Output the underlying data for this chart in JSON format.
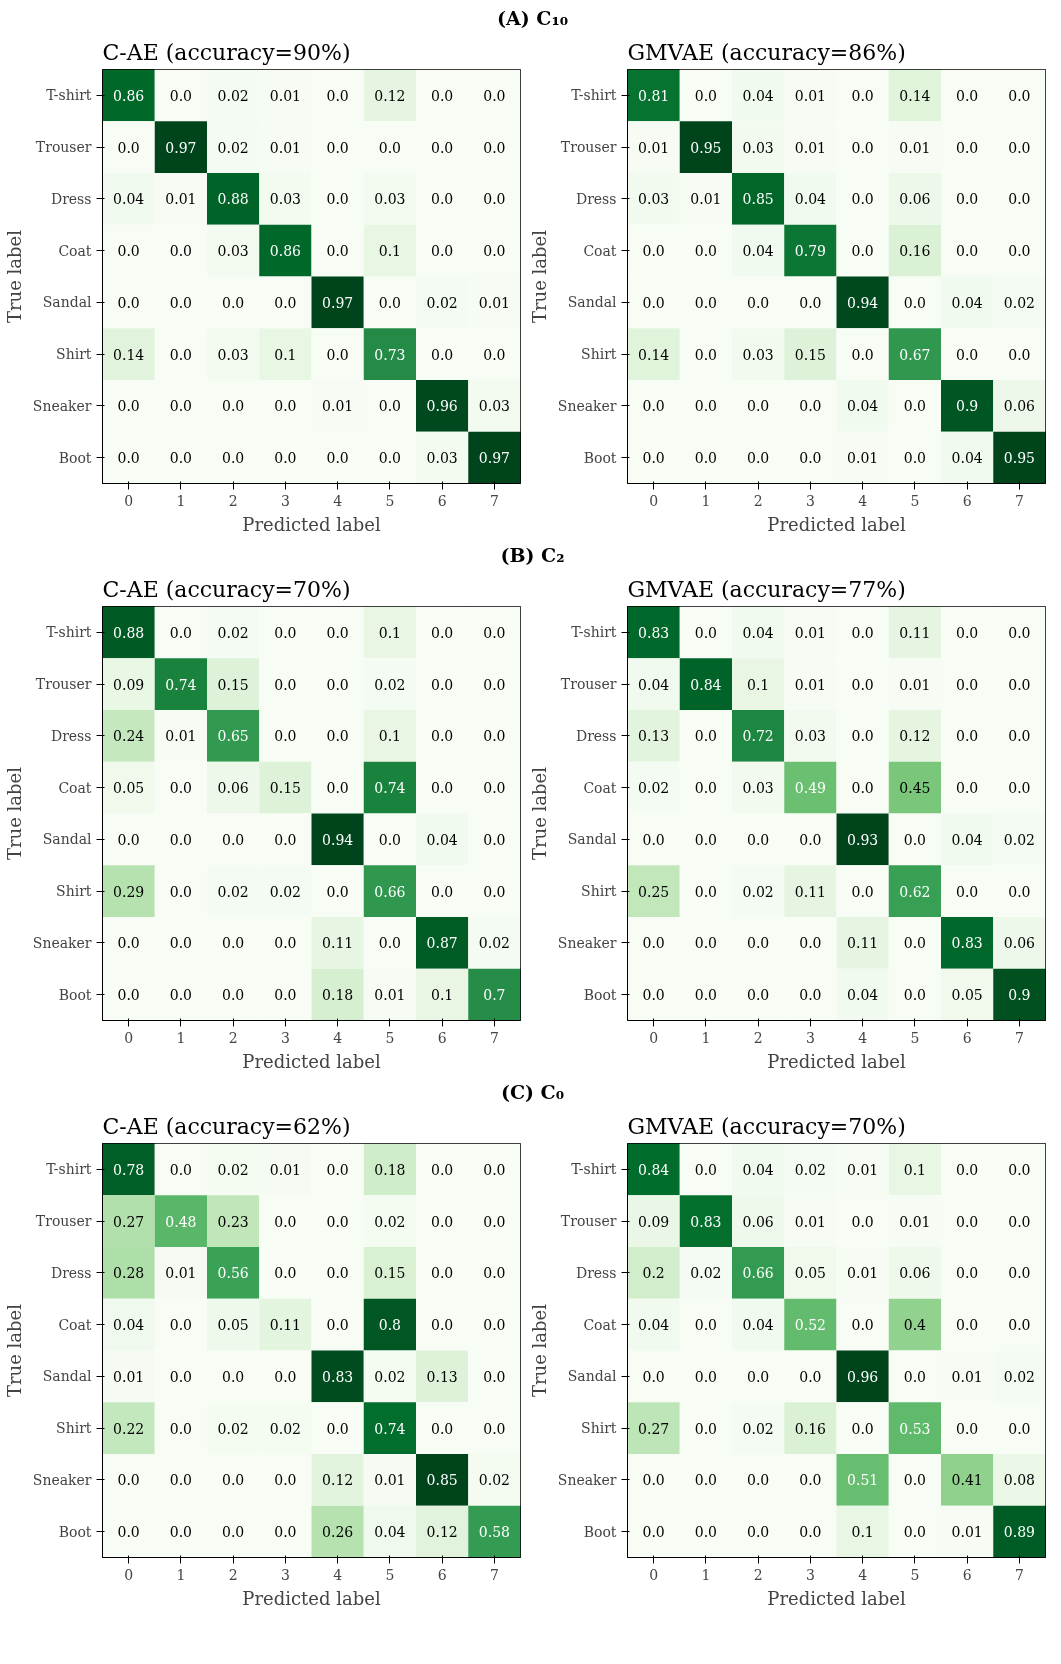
{
  "chart_data": [
    {
      "type": "heatmap",
      "subtitle": "(A) C₁₀",
      "title": "C-AE (accuracy=90%)",
      "xlabel": "Predicted label",
      "ylabel": "True label",
      "data_labels": true,
      "categories": [
        "0",
        "1",
        "2",
        "3",
        "4",
        "5",
        "6",
        "7"
      ],
      "y_categories": [
        "T-shirt",
        "Trouser",
        "Dress",
        "Coat",
        "Sandal",
        "Shirt",
        "Sneaker",
        "Boot"
      ],
      "cells": [
        [
          0.86,
          0.0,
          0.02,
          0.01,
          0.0,
          0.12,
          0.0,
          0.0
        ],
        [
          0.0,
          0.97,
          0.02,
          0.01,
          0.0,
          0.0,
          0.0,
          0.0
        ],
        [
          0.04,
          0.01,
          0.88,
          0.03,
          0.0,
          0.03,
          0.0,
          0.0
        ],
        [
          0.0,
          0.0,
          0.03,
          0.86,
          0.0,
          0.1,
          0.0,
          0.0
        ],
        [
          0.0,
          0.0,
          0.0,
          0.0,
          0.97,
          0.0,
          0.02,
          0.01
        ],
        [
          0.14,
          0.0,
          0.03,
          0.1,
          0.0,
          0.73,
          0.0,
          0.0
        ],
        [
          0.0,
          0.0,
          0.0,
          0.0,
          0.01,
          0.0,
          0.96,
          0.03
        ],
        [
          0.0,
          0.0,
          0.0,
          0.0,
          0.0,
          0.0,
          0.03,
          0.97
        ]
      ],
      "cell_labels": [
        [
          "0.86",
          "0.0",
          "0.02",
          "0.01",
          "0.0",
          "0.12",
          "0.0",
          "0.0"
        ],
        [
          "0.0",
          "0.97",
          "0.02",
          "0.01",
          "0.0",
          "0.0",
          "0.0",
          "0.0"
        ],
        [
          "0.04",
          "0.01",
          "0.88",
          "0.03",
          "0.0",
          "0.03",
          "0.0",
          "0.0"
        ],
        [
          "0.0",
          "0.0",
          "0.03",
          "0.86",
          "0.0",
          "0.1",
          "0.0",
          "0.0"
        ],
        [
          "0.0",
          "0.0",
          "0.0",
          "0.0",
          "0.97",
          "0.0",
          "0.02",
          "0.01"
        ],
        [
          "0.14",
          "0.0",
          "0.03",
          "0.1",
          "0.0",
          "0.73",
          "0.0",
          "0.0"
        ],
        [
          "0.0",
          "0.0",
          "0.0",
          "0.0",
          "0.01",
          "0.0",
          "0.96",
          "0.03"
        ],
        [
          "0.0",
          "0.0",
          "0.0",
          "0.0",
          "0.0",
          "0.0",
          "0.03",
          "0.97"
        ]
      ]
    },
    {
      "type": "heatmap",
      "title": "GMVAE (accuracy=86%)",
      "xlabel": "Predicted label",
      "ylabel": "True label",
      "data_labels": true,
      "categories": [
        "0",
        "1",
        "2",
        "3",
        "4",
        "5",
        "6",
        "7"
      ],
      "y_categories": [
        "T-shirt",
        "Trouser",
        "Dress",
        "Coat",
        "Sandal",
        "Shirt",
        "Sneaker",
        "Boot"
      ],
      "cells": [
        [
          0.81,
          0.0,
          0.04,
          0.01,
          0.0,
          0.14,
          0.0,
          0.0
        ],
        [
          0.01,
          0.95,
          0.03,
          0.01,
          0.0,
          0.01,
          0.0,
          0.0
        ],
        [
          0.03,
          0.01,
          0.85,
          0.04,
          0.0,
          0.06,
          0.0,
          0.0
        ],
        [
          0.0,
          0.0,
          0.04,
          0.79,
          0.0,
          0.16,
          0.0,
          0.0
        ],
        [
          0.0,
          0.0,
          0.0,
          0.0,
          0.94,
          0.0,
          0.04,
          0.02
        ],
        [
          0.14,
          0.0,
          0.03,
          0.15,
          0.0,
          0.67,
          0.0,
          0.0
        ],
        [
          0.0,
          0.0,
          0.0,
          0.0,
          0.04,
          0.0,
          0.9,
          0.06
        ],
        [
          0.0,
          0.0,
          0.0,
          0.0,
          0.01,
          0.0,
          0.04,
          0.95
        ]
      ],
      "cell_labels": [
        [
          "0.81",
          "0.0",
          "0.04",
          "0.01",
          "0.0",
          "0.14",
          "0.0",
          "0.0"
        ],
        [
          "0.01",
          "0.95",
          "0.03",
          "0.01",
          "0.0",
          "0.01",
          "0.0",
          "0.0"
        ],
        [
          "0.03",
          "0.01",
          "0.85",
          "0.04",
          "0.0",
          "0.06",
          "0.0",
          "0.0"
        ],
        [
          "0.0",
          "0.0",
          "0.04",
          "0.79",
          "0.0",
          "0.16",
          "0.0",
          "0.0"
        ],
        [
          "0.0",
          "0.0",
          "0.0",
          "0.0",
          "0.94",
          "0.0",
          "0.04",
          "0.02"
        ],
        [
          "0.14",
          "0.0",
          "0.03",
          "0.15",
          "0.0",
          "0.67",
          "0.0",
          "0.0"
        ],
        [
          "0.0",
          "0.0",
          "0.0",
          "0.0",
          "0.04",
          "0.0",
          "0.9",
          "0.06"
        ],
        [
          "0.0",
          "0.0",
          "0.0",
          "0.0",
          "0.01",
          "0.0",
          "0.04",
          "0.95"
        ]
      ]
    },
    {
      "type": "heatmap",
      "subtitle": "(B) C₂",
      "title": "C-AE (accuracy=70%)",
      "xlabel": "Predicted label",
      "ylabel": "True label",
      "data_labels": true,
      "categories": [
        "0",
        "1",
        "2",
        "3",
        "4",
        "5",
        "6",
        "7"
      ],
      "y_categories": [
        "T-shirt",
        "Trouser",
        "Dress",
        "Coat",
        "Sandal",
        "Shirt",
        "Sneaker",
        "Boot"
      ],
      "cells": [
        [
          0.88,
          0.0,
          0.02,
          0.0,
          0.0,
          0.1,
          0.0,
          0.0
        ],
        [
          0.09,
          0.74,
          0.15,
          0.0,
          0.0,
          0.02,
          0.0,
          0.0
        ],
        [
          0.24,
          0.01,
          0.65,
          0.0,
          0.0,
          0.1,
          0.0,
          0.0
        ],
        [
          0.05,
          0.0,
          0.06,
          0.15,
          0.0,
          0.74,
          0.0,
          0.0
        ],
        [
          0.0,
          0.0,
          0.0,
          0.0,
          0.94,
          0.0,
          0.04,
          0.0
        ],
        [
          0.29,
          0.0,
          0.02,
          0.02,
          0.0,
          0.66,
          0.0,
          0.0
        ],
        [
          0.0,
          0.0,
          0.0,
          0.0,
          0.11,
          0.0,
          0.87,
          0.02
        ],
        [
          0.0,
          0.0,
          0.0,
          0.0,
          0.18,
          0.01,
          0.1,
          0.7
        ]
      ],
      "cell_labels": [
        [
          "0.88",
          "0.0",
          "0.02",
          "0.0",
          "0.0",
          "0.1",
          "0.0",
          "0.0"
        ],
        [
          "0.09",
          "0.74",
          "0.15",
          "0.0",
          "0.0",
          "0.02",
          "0.0",
          "0.0"
        ],
        [
          "0.24",
          "0.01",
          "0.65",
          "0.0",
          "0.0",
          "0.1",
          "0.0",
          "0.0"
        ],
        [
          "0.05",
          "0.0",
          "0.06",
          "0.15",
          "0.0",
          "0.74",
          "0.0",
          "0.0"
        ],
        [
          "0.0",
          "0.0",
          "0.0",
          "0.0",
          "0.94",
          "0.0",
          "0.04",
          "0.0"
        ],
        [
          "0.29",
          "0.0",
          "0.02",
          "0.02",
          "0.0",
          "0.66",
          "0.0",
          "0.0"
        ],
        [
          "0.0",
          "0.0",
          "0.0",
          "0.0",
          "0.11",
          "0.0",
          "0.87",
          "0.02"
        ],
        [
          "0.0",
          "0.0",
          "0.0",
          "0.0",
          "0.18",
          "0.01",
          "0.1",
          "0.7"
        ]
      ]
    },
    {
      "type": "heatmap",
      "title": "GMVAE (accuracy=77%)",
      "xlabel": "Predicted label",
      "ylabel": "True label",
      "data_labels": true,
      "categories": [
        "0",
        "1",
        "2",
        "3",
        "4",
        "5",
        "6",
        "7"
      ],
      "y_categories": [
        "T-shirt",
        "Trouser",
        "Dress",
        "Coat",
        "Sandal",
        "Shirt",
        "Sneaker",
        "Boot"
      ],
      "cells": [
        [
          0.83,
          0.0,
          0.04,
          0.01,
          0.0,
          0.11,
          0.0,
          0.0
        ],
        [
          0.04,
          0.84,
          0.1,
          0.01,
          0.0,
          0.01,
          0.0,
          0.0
        ],
        [
          0.13,
          0.0,
          0.72,
          0.03,
          0.0,
          0.12,
          0.0,
          0.0
        ],
        [
          0.02,
          0.0,
          0.03,
          0.49,
          0.0,
          0.45,
          0.0,
          0.0
        ],
        [
          0.0,
          0.0,
          0.0,
          0.0,
          0.93,
          0.0,
          0.04,
          0.02
        ],
        [
          0.25,
          0.0,
          0.02,
          0.11,
          0.0,
          0.62,
          0.0,
          0.0
        ],
        [
          0.0,
          0.0,
          0.0,
          0.0,
          0.11,
          0.0,
          0.83,
          0.06
        ],
        [
          0.0,
          0.0,
          0.0,
          0.0,
          0.04,
          0.0,
          0.05,
          0.9
        ]
      ],
      "cell_labels": [
        [
          "0.83",
          "0.0",
          "0.04",
          "0.01",
          "0.0",
          "0.11",
          "0.0",
          "0.0"
        ],
        [
          "0.04",
          "0.84",
          "0.1",
          "0.01",
          "0.0",
          "0.01",
          "0.0",
          "0.0"
        ],
        [
          "0.13",
          "0.0",
          "0.72",
          "0.03",
          "0.0",
          "0.12",
          "0.0",
          "0.0"
        ],
        [
          "0.02",
          "0.0",
          "0.03",
          "0.49",
          "0.0",
          "0.45",
          "0.0",
          "0.0"
        ],
        [
          "0.0",
          "0.0",
          "0.0",
          "0.0",
          "0.93",
          "0.0",
          "0.04",
          "0.02"
        ],
        [
          "0.25",
          "0.0",
          "0.02",
          "0.11",
          "0.0",
          "0.62",
          "0.0",
          "0.0"
        ],
        [
          "0.0",
          "0.0",
          "0.0",
          "0.0",
          "0.11",
          "0.0",
          "0.83",
          "0.06"
        ],
        [
          "0.0",
          "0.0",
          "0.0",
          "0.0",
          "0.04",
          "0.0",
          "0.05",
          "0.9"
        ]
      ]
    },
    {
      "type": "heatmap",
      "subtitle": "(C) C₀",
      "title": "C-AE (accuracy=62%)",
      "xlabel": "Predicted label",
      "ylabel": "True label",
      "data_labels": true,
      "categories": [
        "0",
        "1",
        "2",
        "3",
        "4",
        "5",
        "6",
        "7"
      ],
      "y_categories": [
        "T-shirt",
        "Trouser",
        "Dress",
        "Coat",
        "Sandal",
        "Shirt",
        "Sneaker",
        "Boot"
      ],
      "cells": [
        [
          0.78,
          0.0,
          0.02,
          0.01,
          0.0,
          0.18,
          0.0,
          0.0
        ],
        [
          0.27,
          0.48,
          0.23,
          0.0,
          0.0,
          0.02,
          0.0,
          0.0
        ],
        [
          0.28,
          0.01,
          0.56,
          0.0,
          0.0,
          0.15,
          0.0,
          0.0
        ],
        [
          0.04,
          0.0,
          0.05,
          0.11,
          0.0,
          0.8,
          0.0,
          0.0
        ],
        [
          0.01,
          0.0,
          0.0,
          0.0,
          0.83,
          0.02,
          0.13,
          0.0
        ],
        [
          0.22,
          0.0,
          0.02,
          0.02,
          0.0,
          0.74,
          0.0,
          0.0
        ],
        [
          0.0,
          0.0,
          0.0,
          0.0,
          0.12,
          0.01,
          0.85,
          0.02
        ],
        [
          0.0,
          0.0,
          0.0,
          0.0,
          0.26,
          0.04,
          0.12,
          0.58
        ]
      ],
      "cell_labels": [
        [
          "0.78",
          "0.0",
          "0.02",
          "0.01",
          "0.0",
          "0.18",
          "0.0",
          "0.0"
        ],
        [
          "0.27",
          "0.48",
          "0.23",
          "0.0",
          "0.0",
          "0.02",
          "0.0",
          "0.0"
        ],
        [
          "0.28",
          "0.01",
          "0.56",
          "0.0",
          "0.0",
          "0.15",
          "0.0",
          "0.0"
        ],
        [
          "0.04",
          "0.0",
          "0.05",
          "0.11",
          "0.0",
          "0.8",
          "0.0",
          "0.0"
        ],
        [
          "0.01",
          "0.0",
          "0.0",
          "0.0",
          "0.83",
          "0.02",
          "0.13",
          "0.0"
        ],
        [
          "0.22",
          "0.0",
          "0.02",
          "0.02",
          "0.0",
          "0.74",
          "0.0",
          "0.0"
        ],
        [
          "0.0",
          "0.0",
          "0.0",
          "0.0",
          "0.12",
          "0.01",
          "0.85",
          "0.02"
        ],
        [
          "0.0",
          "0.0",
          "0.0",
          "0.0",
          "0.26",
          "0.04",
          "0.12",
          "0.58"
        ]
      ]
    },
    {
      "type": "heatmap",
      "title": "GMVAE (accuracy=70%)",
      "xlabel": "Predicted label",
      "ylabel": "True label",
      "data_labels": true,
      "categories": [
        "0",
        "1",
        "2",
        "3",
        "4",
        "5",
        "6",
        "7"
      ],
      "y_categories": [
        "T-shirt",
        "Trouser",
        "Dress",
        "Coat",
        "Sandal",
        "Shirt",
        "Sneaker",
        "Boot"
      ],
      "cells": [
        [
          0.84,
          0.0,
          0.04,
          0.02,
          0.01,
          0.1,
          0.0,
          0.0
        ],
        [
          0.09,
          0.83,
          0.06,
          0.01,
          0.0,
          0.01,
          0.0,
          0.0
        ],
        [
          0.2,
          0.02,
          0.66,
          0.05,
          0.01,
          0.06,
          0.0,
          0.0
        ],
        [
          0.04,
          0.0,
          0.04,
          0.52,
          0.0,
          0.4,
          0.0,
          0.0
        ],
        [
          0.0,
          0.0,
          0.0,
          0.0,
          0.96,
          0.0,
          0.01,
          0.02
        ],
        [
          0.27,
          0.0,
          0.02,
          0.16,
          0.0,
          0.53,
          0.0,
          0.0
        ],
        [
          0.0,
          0.0,
          0.0,
          0.0,
          0.51,
          0.0,
          0.41,
          0.08
        ],
        [
          0.0,
          0.0,
          0.0,
          0.0,
          0.1,
          0.0,
          0.01,
          0.89
        ]
      ],
      "cell_labels": [
        [
          "0.84",
          "0.0",
          "0.04",
          "0.02",
          "0.01",
          "0.1",
          "0.0",
          "0.0"
        ],
        [
          "0.09",
          "0.83",
          "0.06",
          "0.01",
          "0.0",
          "0.01",
          "0.0",
          "0.0"
        ],
        [
          "0.2",
          "0.02",
          "0.66",
          "0.05",
          "0.01",
          "0.06",
          "0.0",
          "0.0"
        ],
        [
          "0.04",
          "0.0",
          "0.04",
          "0.52",
          "0.0",
          "0.4",
          "0.0",
          "0.0"
        ],
        [
          "0.0",
          "0.0",
          "0.0",
          "0.0",
          "0.96",
          "0.0",
          "0.01",
          "0.02"
        ],
        [
          "0.27",
          "0.0",
          "0.02",
          "0.16",
          "0.0",
          "0.53",
          "0.0",
          "0.0"
        ],
        [
          "0.0",
          "0.0",
          "0.0",
          "0.0",
          "0.51",
          "0.0",
          "0.41",
          "0.08"
        ],
        [
          "0.0",
          "0.0",
          "0.0",
          "0.0",
          "0.1",
          "0.0",
          "0.01",
          "0.89"
        ]
      ]
    }
  ]
}
